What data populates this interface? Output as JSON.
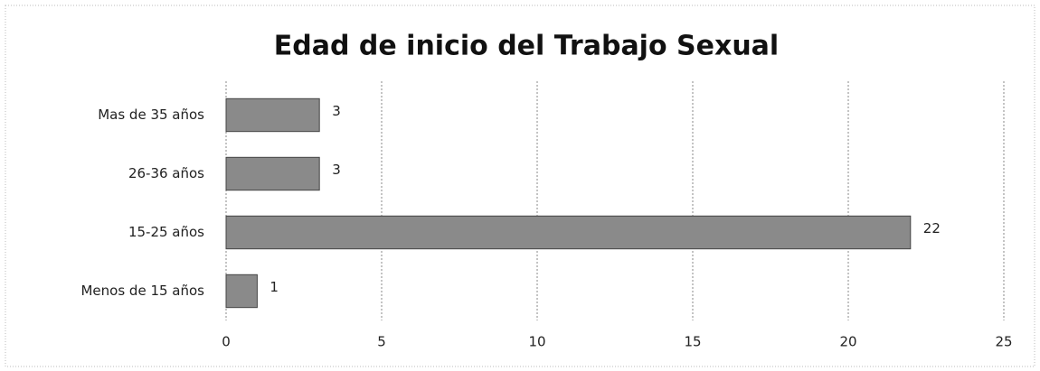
{
  "chart_data": {
    "type": "bar",
    "orientation": "horizontal",
    "title": "Edad  de inicio del Trabajo Sexual",
    "categories": [
      "Mas de 35 años",
      "26-36 años",
      "15-25 años",
      "Menos de 15 años"
    ],
    "values": [
      3,
      3,
      22,
      1
    ],
    "color": "#8a8a8a",
    "xlim": [
      0,
      25
    ],
    "xticks": [
      0,
      5,
      10,
      15,
      20,
      25
    ],
    "grid": true
  }
}
